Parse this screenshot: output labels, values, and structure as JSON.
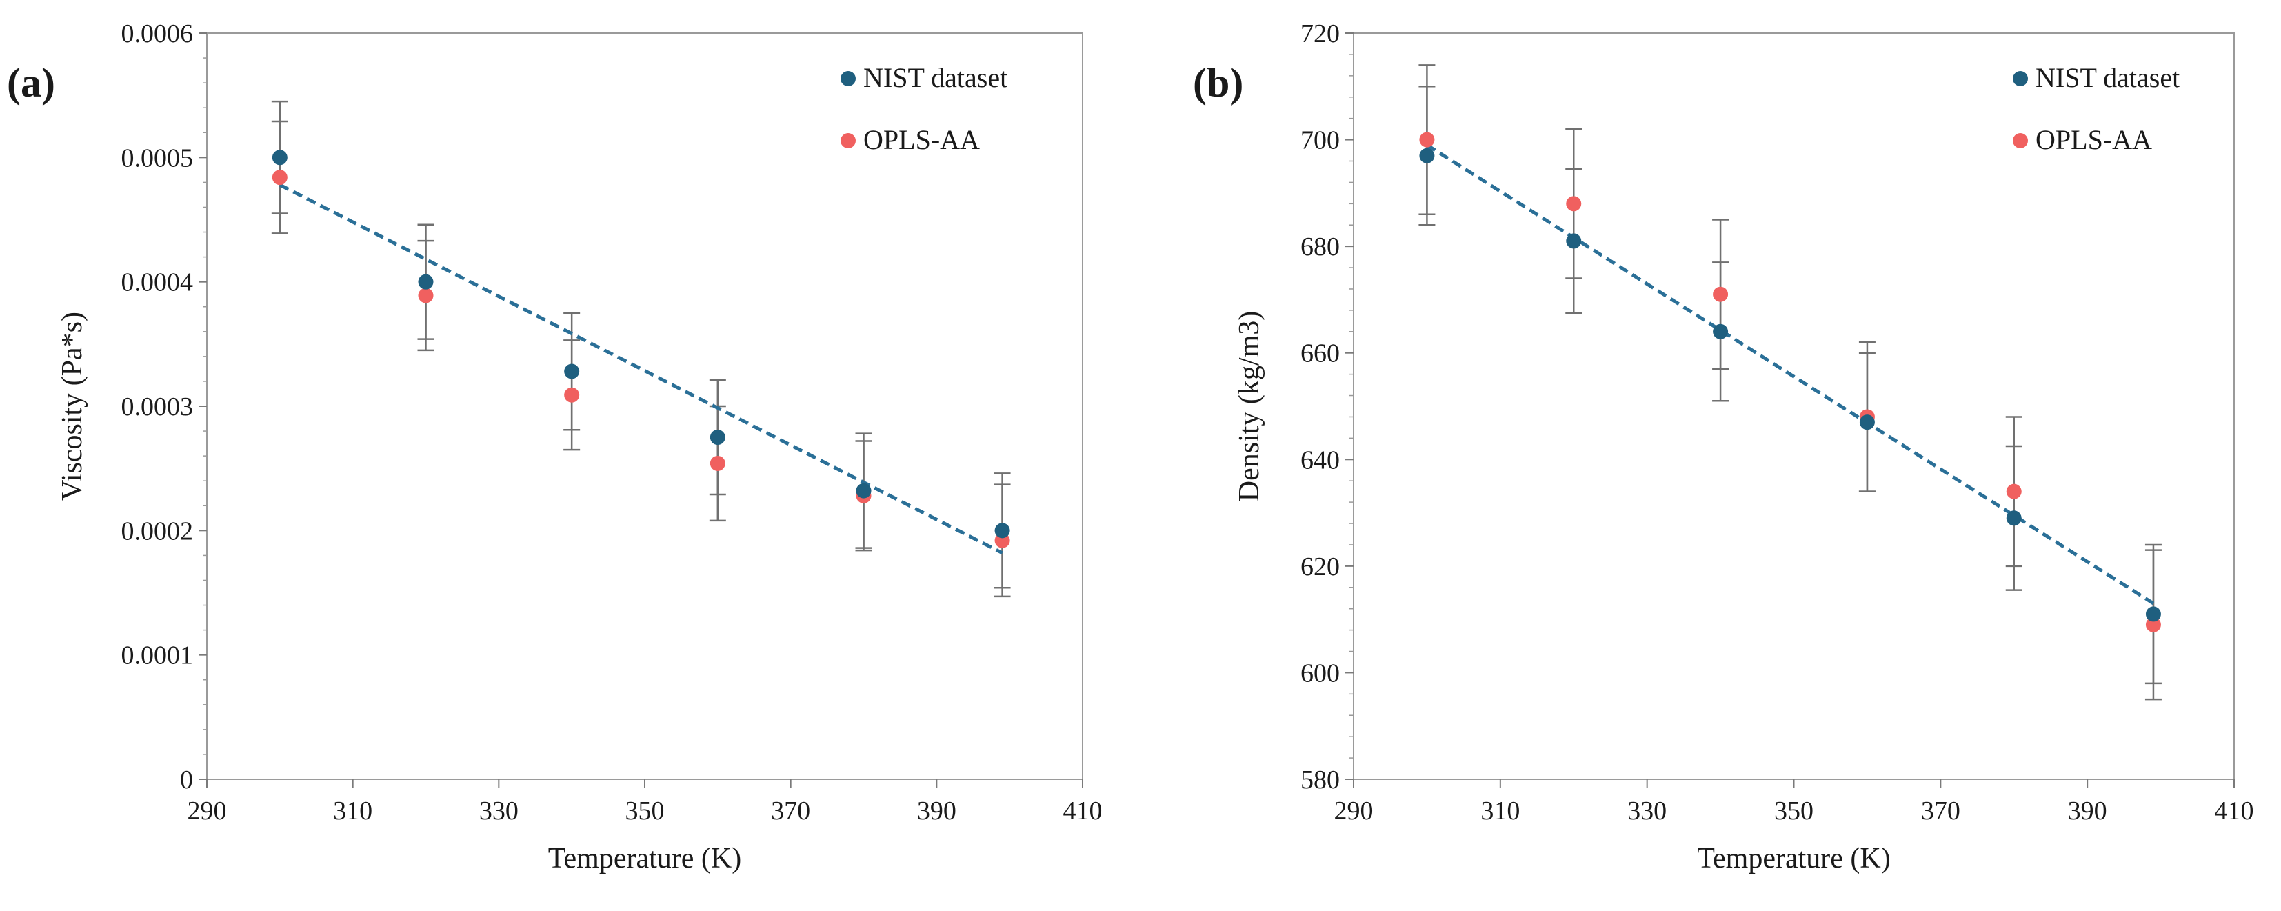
{
  "chart_data": [
    {
      "type": "scatter",
      "panel_label": "(a)",
      "xlabel": "Temperature (K)",
      "ylabel": "Viscosity (Pa*s)",
      "xlim": [
        290,
        410
      ],
      "ylim": [
        0,
        0.0006
      ],
      "xticks": [
        290,
        310,
        330,
        350,
        370,
        390,
        410
      ],
      "xtick_labels": [
        "290",
        "310",
        "330",
        "350",
        "370",
        "390",
        "410"
      ],
      "yticks": [
        0,
        0.0001,
        0.0002,
        0.0003,
        0.0004,
        0.0005,
        0.0006
      ],
      "ytick_labels": [
        "0",
        "0.0001",
        "0.0002",
        "0.0003",
        "0.0004",
        "0.0005",
        "0.0006"
      ],
      "legend_position": "top-right",
      "colors": {
        "nist": "#1f5f7f",
        "opls": "#f0605f",
        "trend": "#2a6f97",
        "error": "#707070"
      },
      "series": [
        {
          "name": "NIST dataset",
          "key": "nist",
          "x": [
            300,
            320,
            340,
            360,
            380,
            399
          ],
          "y": [
            0.0005,
            0.0004,
            0.000328,
            0.000275,
            0.000232,
            0.0002
          ],
          "err": [
            4.5e-05,
            4.6e-05,
            4.7e-05,
            4.6e-05,
            4.6e-05,
            4.6e-05
          ]
        },
        {
          "name": "OPLS-AA",
          "key": "opls",
          "x": [
            300,
            320,
            340,
            360,
            380,
            399
          ],
          "y": [
            0.000484,
            0.000389,
            0.000309,
            0.000254,
            0.000228,
            0.000192
          ],
          "err": [
            4.5e-05,
            4.4e-05,
            4.4e-05,
            4.6e-05,
            4.4e-05,
            4.5e-05
          ]
        }
      ],
      "trendline": {
        "x": [
          300,
          399
        ],
        "y": [
          0.000478,
          0.000182
        ]
      }
    },
    {
      "type": "scatter",
      "panel_label": "(b)",
      "xlabel": "Temperature (K)",
      "ylabel": "Density (kg/m3)",
      "xlim": [
        290,
        410
      ],
      "ylim": [
        580,
        720
      ],
      "xticks": [
        290,
        310,
        330,
        350,
        370,
        390,
        410
      ],
      "xtick_labels": [
        "290",
        "310",
        "330",
        "350",
        "370",
        "390",
        "410"
      ],
      "yticks": [
        580,
        600,
        620,
        640,
        660,
        680,
        700,
        720
      ],
      "ytick_labels": [
        "580",
        "600",
        "620",
        "640",
        "660",
        "680",
        "700",
        "720"
      ],
      "legend_position": "top-right",
      "colors": {
        "nist": "#1f5f7f",
        "opls": "#f0605f",
        "trend": "#2a6f97",
        "error": "#707070"
      },
      "series": [
        {
          "name": "NIST dataset",
          "key": "nist",
          "x": [
            300,
            320,
            340,
            360,
            380,
            399
          ],
          "y": [
            697,
            681,
            664,
            647,
            629,
            611
          ],
          "err": [
            13,
            13.5,
            13,
            13,
            13.5,
            13
          ]
        },
        {
          "name": "OPLS-AA",
          "key": "opls",
          "x": [
            300,
            320,
            340,
            360,
            380,
            399
          ],
          "y": [
            700,
            688,
            671,
            648,
            634,
            609
          ],
          "err": [
            14,
            14,
            14,
            14,
            14,
            14
          ]
        }
      ],
      "trendline": {
        "x": [
          300,
          399
        ],
        "y": [
          699,
          613
        ]
      }
    }
  ]
}
